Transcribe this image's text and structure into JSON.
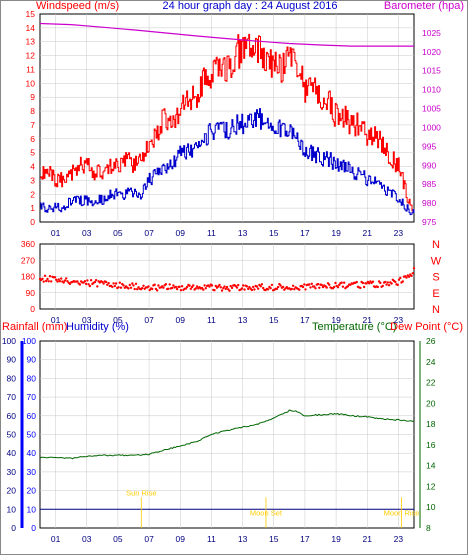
{
  "header": {
    "title": "24 hour graph day : 24 August 2016",
    "windspeed_label": "Windspeed (m/s)",
    "barometer_label": "Barometer (hpa)",
    "rainfall_label": "Rainfall (mm)",
    "humidity_label": "Humidity (%)",
    "temperature_label": "Temperature (°C)",
    "dewpoint_label": "Dew Point (°C)"
  },
  "colors": {
    "wind_gust": "#ff0000",
    "wind_avg": "#0000cc",
    "barometer": "#cc00cc",
    "direction": "#ff0000",
    "temperature": "#006600",
    "dewpoint": "#006600",
    "rainfall": "#000080",
    "humidity": "#0000ff",
    "axis_temp": "#006600",
    "events": "#ffcc00",
    "grid": "#c8c8c8"
  },
  "chart_data": [
    {
      "type": "line",
      "panel": "wind-barometer",
      "x_ticks": [
        "01",
        "03",
        "05",
        "07",
        "09",
        "11",
        "13",
        "15",
        "17",
        "19",
        "21",
        "23"
      ],
      "x_unit": "hour",
      "y_left": {
        "label": "Windspeed (m/s)",
        "range": [
          0,
          15
        ],
        "ticks": [
          "0",
          "1",
          "2",
          "3",
          "4",
          "5",
          "6",
          "7",
          "8",
          "9",
          "10",
          "11",
          "12",
          "13",
          "14",
          "15"
        ]
      },
      "y_right": {
        "label": "Barometer (hpa)",
        "range": [
          975,
          1030
        ],
        "ticks": [
          "975",
          "980",
          "985",
          "990",
          "995",
          "1000",
          "1005",
          "1010",
          "1015",
          "1020",
          "1025"
        ]
      },
      "series": [
        {
          "name": "Windspeed (m/s)",
          "role": "gust",
          "axis": "left",
          "x": [
            0,
            0.5,
            1,
            1.5,
            2,
            2.5,
            3,
            3.5,
            4,
            4.5,
            5,
            5.5,
            6,
            6.5,
            7,
            7.5,
            8,
            8.5,
            9,
            9.5,
            10,
            10.5,
            11,
            11.5,
            12,
            12.5,
            13,
            13.5,
            14,
            14.5,
            15,
            15.5,
            16,
            16.5,
            17,
            17.5,
            18,
            18.5,
            19,
            19.5,
            20,
            20.5,
            21,
            21.5,
            22,
            22.5,
            23,
            23.5,
            24
          ],
          "y": [
            3.5,
            3.5,
            3,
            3,
            3.5,
            4,
            4,
            3.5,
            3.5,
            4,
            4,
            4.5,
            4,
            4.5,
            5.5,
            6.5,
            7.5,
            7,
            8,
            8.5,
            9,
            10,
            10.5,
            11,
            11,
            12,
            12.5,
            12,
            12.5,
            11.5,
            11.5,
            11,
            12,
            11,
            9.5,
            9.5,
            8.5,
            8.5,
            7.5,
            7.5,
            7,
            7,
            6,
            6,
            5.5,
            4.5,
            4,
            2,
            0.5
          ]
        },
        {
          "name": "Windspeed average",
          "role": "average",
          "axis": "left",
          "x": [
            0,
            0.5,
            1,
            1.5,
            2,
            2.5,
            3,
            3.5,
            4,
            4.5,
            5,
            5.5,
            6,
            6.5,
            7,
            7.5,
            8,
            8.5,
            9,
            9.5,
            10,
            10.5,
            11,
            11.5,
            12,
            12.5,
            13,
            13.5,
            14,
            14.5,
            15,
            15.5,
            16,
            16.5,
            17,
            17.5,
            18,
            18.5,
            19,
            19.5,
            20,
            20.5,
            21,
            21.5,
            22,
            22.5,
            23,
            23.5,
            24
          ],
          "y": [
            1,
            1,
            1,
            1,
            1.5,
            1.5,
            1.5,
            1.5,
            1.5,
            2,
            2,
            2,
            2,
            2,
            3,
            3.5,
            4,
            4,
            5,
            5,
            5.5,
            6,
            6.5,
            6.5,
            6.5,
            7,
            7,
            7,
            7.5,
            7,
            7,
            6.5,
            6.5,
            6,
            5,
            5,
            4.5,
            4.5,
            4,
            4,
            3.5,
            3.5,
            3,
            3,
            2.5,
            2,
            1.5,
            1,
            0.5
          ]
        },
        {
          "name": "Barometer (hpa)",
          "axis": "right",
          "x": [
            0,
            2,
            4,
            6,
            8,
            10,
            12,
            14,
            16,
            18,
            20,
            22,
            24
          ],
          "y": [
            1027.5,
            1027.2,
            1026.5,
            1025.8,
            1025,
            1024.2,
            1023.5,
            1022.8,
            1022.2,
            1021.8,
            1021.5,
            1021.5,
            1021.5
          ]
        }
      ]
    },
    {
      "type": "scatter",
      "panel": "wind-direction",
      "x_ticks": [
        "01",
        "03",
        "05",
        "07",
        "09",
        "11",
        "13",
        "15",
        "17",
        "19",
        "21",
        "23"
      ],
      "x_unit": "hour",
      "y_left": {
        "range": [
          0,
          360
        ],
        "ticks": [
          "0",
          "90",
          "180",
          "270",
          "360"
        ]
      },
      "y_right": {
        "ticks": [
          "N",
          "W",
          "S",
          "E",
          "N"
        ]
      },
      "series": [
        {
          "name": "Wind direction",
          "x": [
            0,
            1,
            2,
            3,
            4,
            5,
            6,
            7,
            8,
            9,
            10,
            11,
            12,
            13,
            14,
            15,
            16,
            17,
            18,
            19,
            20,
            21,
            22,
            23,
            23.5,
            24
          ],
          "y": [
            170,
            165,
            155,
            145,
            140,
            130,
            125,
            120,
            120,
            120,
            118,
            118,
            118,
            120,
            120,
            120,
            122,
            125,
            125,
            128,
            130,
            135,
            140,
            150,
            170,
            210
          ]
        }
      ]
    },
    {
      "type": "line",
      "panel": "temperature-humidity",
      "x_ticks": [
        "01",
        "03",
        "05",
        "07",
        "09",
        "11",
        "13",
        "15",
        "17",
        "19",
        "21",
        "23"
      ],
      "x_unit": "hour",
      "y_left": {
        "label": "Rainfall (mm)",
        "range": [
          0,
          100
        ],
        "ticks": [
          "0",
          "10",
          "20",
          "30",
          "40",
          "50",
          "60",
          "70",
          "80",
          "90",
          "100"
        ]
      },
      "y_left2": {
        "label": "Humidity (%)",
        "range": [
          0,
          100
        ],
        "ticks": [
          "0",
          "10",
          "20",
          "30",
          "40",
          "50",
          "60",
          "70",
          "80",
          "90",
          "100"
        ]
      },
      "y_right": {
        "label": "Temperature (°C)",
        "range": [
          8,
          26
        ],
        "ticks": [
          "8",
          "10",
          "12",
          "14",
          "16",
          "18",
          "20",
          "22",
          "24",
          "26"
        ]
      },
      "series": [
        {
          "name": "Temperature (°C)",
          "axis": "right",
          "x": [
            0,
            1,
            2,
            3,
            4,
            5,
            6,
            7,
            8,
            9,
            10,
            11,
            12,
            13,
            14,
            15,
            16,
            16.5,
            17,
            18,
            19,
            20,
            21,
            22,
            23,
            24
          ],
          "y": [
            14.8,
            14.8,
            14.7,
            14.9,
            15,
            15,
            15,
            15.1,
            15.5,
            15.9,
            16.3,
            17,
            17.4,
            17.7,
            18,
            18.6,
            19.3,
            19.2,
            18.8,
            18.9,
            19,
            18.8,
            18.7,
            18.5,
            18.4,
            18.3
          ]
        },
        {
          "name": "Rainfall (mm)",
          "axis": "left",
          "x": [
            0,
            24
          ],
          "y": [
            10,
            10
          ]
        }
      ],
      "events": [
        {
          "label": "Sun Rise",
          "hour": 6.5
        },
        {
          "label": "Moon Set",
          "hour": 14.5
        },
        {
          "label": "Moon Rise",
          "hour": 23.2
        }
      ]
    }
  ]
}
